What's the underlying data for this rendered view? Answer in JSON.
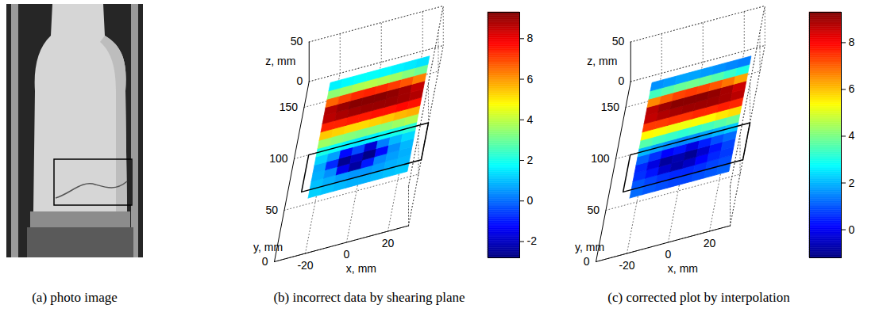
{
  "chart_data": [
    {
      "type": "image",
      "caption": "(a) photo image"
    },
    {
      "type": "surface3d",
      "caption": "(b) incorrect data by shearing plane",
      "xlabel": "x, mm",
      "ylabel": "y, mm",
      "zlabel": "z, mm",
      "xlim": [
        -35,
        30
      ],
      "ylim": [
        0,
        175
      ],
      "zlim": [
        0,
        50
      ],
      "xticks": [
        -20,
        0,
        20
      ],
      "yticks": [
        0,
        50,
        100,
        150
      ],
      "zticks": [
        0,
        50
      ],
      "grid": true,
      "surface": {
        "x": [
          -21,
          -15,
          -9,
          -3,
          3,
          9,
          15,
          21
        ],
        "y": [
          60,
          68,
          76,
          84,
          92,
          100,
          108,
          116,
          124,
          132,
          140,
          148,
          156,
          164
        ],
        "values": [
          [
            1.2,
            1.0,
            0.9,
            0.8,
            0.8,
            0.9,
            1.0,
            1.1
          ],
          [
            1.0,
            0.8,
            0.6,
            0.5,
            0.5,
            0.6,
            0.8,
            0.9
          ],
          [
            0.8,
            0.4,
            -1.5,
            -2.4,
            -1.0,
            0.3,
            0.6,
            0.8
          ],
          [
            0.7,
            -0.8,
            -2.6,
            -2.0,
            -2.7,
            -1.2,
            0.4,
            0.9
          ],
          [
            1.2,
            0.6,
            -1.2,
            -0.4,
            -1.8,
            0.2,
            0.9,
            1.3
          ],
          [
            2.0,
            1.8,
            1.6,
            1.5,
            1.6,
            1.8,
            2.0,
            2.2
          ],
          [
            3.6,
            3.4,
            3.3,
            3.2,
            3.3,
            3.4,
            3.6,
            3.8
          ],
          [
            5.4,
            5.3,
            5.2,
            5.2,
            5.3,
            5.4,
            5.6,
            5.7
          ],
          [
            7.4,
            7.4,
            7.5,
            7.5,
            7.6,
            7.6,
            7.7,
            7.6
          ],
          [
            8.6,
            8.8,
            8.9,
            9.0,
            9.0,
            9.0,
            8.9,
            8.7
          ],
          [
            8.7,
            9.0,
            9.2,
            9.2,
            9.2,
            9.1,
            8.9,
            8.5
          ],
          [
            6.6,
            7.0,
            7.3,
            7.4,
            7.3,
            7.1,
            6.8,
            6.3
          ],
          [
            3.4,
            3.6,
            3.8,
            3.9,
            3.8,
            3.6,
            3.3,
            3.0
          ],
          [
            1.6,
            1.7,
            1.8,
            1.8,
            1.7,
            1.6,
            1.5,
            1.4
          ]
        ]
      },
      "colorbar": {
        "range": [
          -2.8,
          9.3
        ],
        "ticks": [
          -2,
          0,
          2,
          4,
          6,
          8
        ]
      }
    },
    {
      "type": "surface3d",
      "caption": "(c) corrected plot by interpolation",
      "xlabel": "x, mm",
      "ylabel": "y, mm",
      "zlabel": "z, mm",
      "xlim": [
        -35,
        30
      ],
      "ylim": [
        0,
        175
      ],
      "zlim": [
        0,
        50
      ],
      "xticks": [
        -20,
        0,
        20
      ],
      "yticks": [
        0,
        50,
        100,
        150
      ],
      "zticks": [
        0,
        50
      ],
      "grid": true,
      "surface": {
        "x": [
          -21,
          -15,
          -9,
          -3,
          3,
          9,
          15,
          21
        ],
        "y": [
          60,
          68,
          76,
          84,
          92,
          100,
          108,
          116,
          124,
          132,
          140,
          148,
          156,
          164
        ],
        "values": [
          [
            1.2,
            1.0,
            0.9,
            0.8,
            0.8,
            0.9,
            1.0,
            1.1
          ],
          [
            1.0,
            0.8,
            0.6,
            0.5,
            0.5,
            0.6,
            0.8,
            0.9
          ],
          [
            0.6,
            0.3,
            -0.4,
            -0.8,
            -0.5,
            0.1,
            0.5,
            0.7
          ],
          [
            0.5,
            -0.2,
            -0.9,
            -0.7,
            -1.0,
            -0.4,
            0.3,
            0.8
          ],
          [
            1.1,
            0.6,
            0.1,
            0.3,
            -0.2,
            0.4,
            0.9,
            1.2
          ],
          [
            2.0,
            1.8,
            1.6,
            1.5,
            1.6,
            1.8,
            2.0,
            2.2
          ],
          [
            3.6,
            3.4,
            3.3,
            3.2,
            3.3,
            3.4,
            3.6,
            3.8
          ],
          [
            5.4,
            5.3,
            5.2,
            5.2,
            5.3,
            5.4,
            5.6,
            5.7
          ],
          [
            7.4,
            7.4,
            7.5,
            7.5,
            7.6,
            7.6,
            7.7,
            7.6
          ],
          [
            8.6,
            8.8,
            8.9,
            9.0,
            9.0,
            9.0,
            8.9,
            8.7
          ],
          [
            8.7,
            9.0,
            9.2,
            9.2,
            9.2,
            9.1,
            8.9,
            8.5
          ],
          [
            6.6,
            7.0,
            7.3,
            7.4,
            7.3,
            7.1,
            6.8,
            6.3
          ],
          [
            3.4,
            3.6,
            3.8,
            3.9,
            3.8,
            3.6,
            3.3,
            3.0
          ],
          [
            1.6,
            1.7,
            1.8,
            1.8,
            1.7,
            1.6,
            1.5,
            1.4
          ]
        ]
      },
      "colorbar": {
        "range": [
          -1.2,
          9.3
        ],
        "ticks": [
          0,
          2,
          4,
          6,
          8
        ]
      }
    }
  ]
}
